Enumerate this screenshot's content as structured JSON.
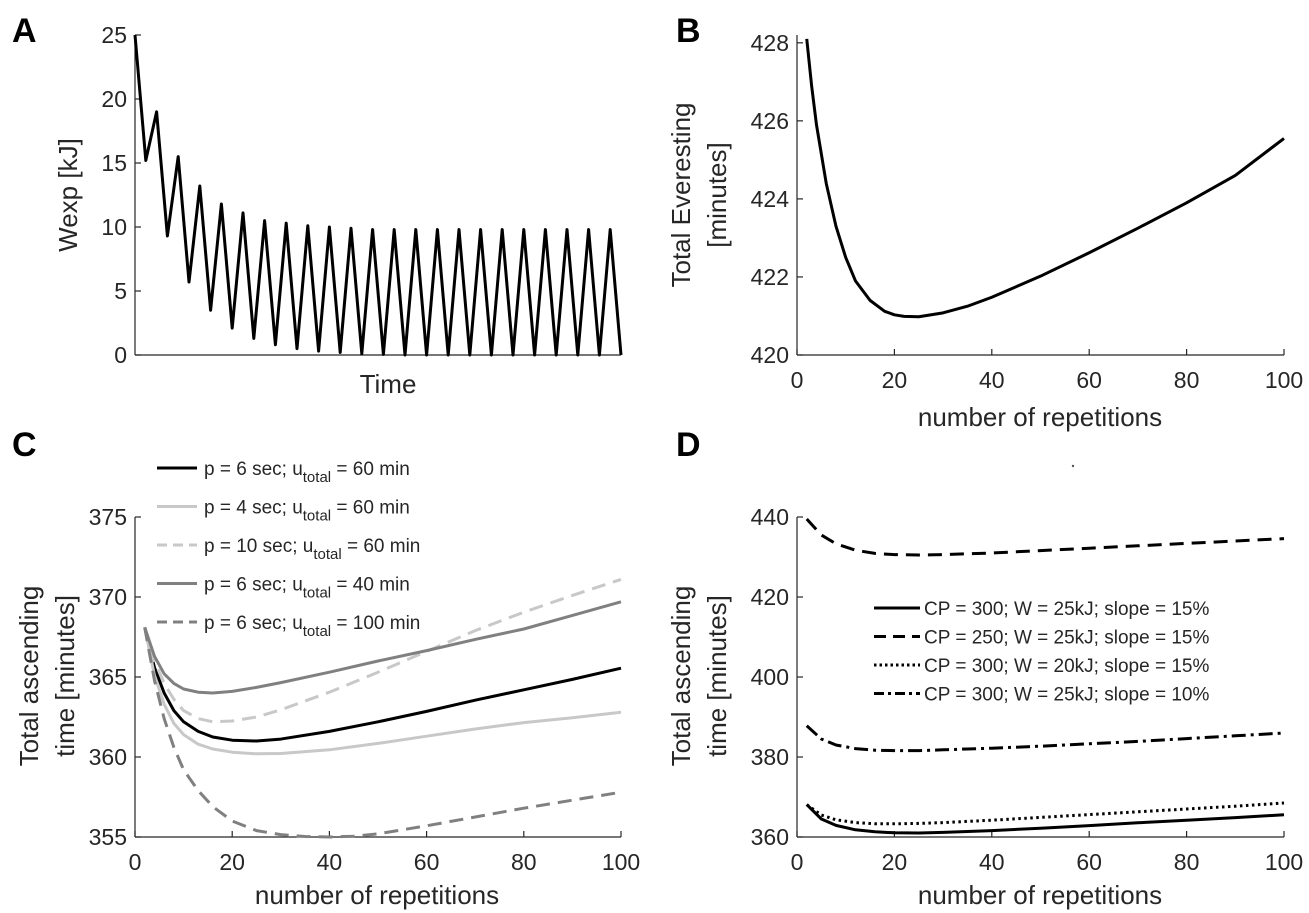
{
  "chart_data": [
    {
      "panel": "A",
      "type": "line",
      "xlabel": "Time",
      "ylabel": "Wexp [kJ]",
      "xticks": [],
      "ylim": [
        0,
        25
      ],
      "yticks": [
        0,
        5,
        10,
        15,
        20,
        25
      ],
      "grid": false,
      "legend": null,
      "series": [
        {
          "color": "#000000",
          "dash": "solid",
          "points": [
            [
              0,
              25
            ],
            [
              1,
              15.2
            ],
            [
              2,
              19.0
            ],
            [
              3,
              9.3
            ],
            [
              4,
              15.5
            ],
            [
              5,
              5.7
            ],
            [
              6,
              13.2
            ],
            [
              7,
              3.5
            ],
            [
              8,
              11.8
            ],
            [
              9,
              2.1
            ],
            [
              10,
              11.1
            ],
            [
              11,
              1.3
            ],
            [
              12,
              10.5
            ],
            [
              13,
              0.8
            ],
            [
              14,
              10.3
            ],
            [
              15,
              0.5
            ],
            [
              16,
              10.1
            ],
            [
              17,
              0.3
            ],
            [
              18,
              10.0
            ],
            [
              19,
              0.2
            ],
            [
              20,
              9.9
            ],
            [
              21,
              0.1
            ],
            [
              22,
              9.8
            ],
            [
              23,
              0.05
            ],
            [
              24,
              9.8
            ],
            [
              25,
              0
            ],
            [
              26,
              9.8
            ],
            [
              27,
              0
            ],
            [
              28,
              9.8
            ],
            [
              29,
              0
            ],
            [
              30,
              9.8
            ],
            [
              31,
              0
            ],
            [
              32,
              9.8
            ],
            [
              33,
              0
            ],
            [
              34,
              9.8
            ],
            [
              35,
              0
            ],
            [
              36,
              9.8
            ],
            [
              37,
              0
            ],
            [
              38,
              9.8
            ],
            [
              39,
              0
            ],
            [
              40,
              9.8
            ],
            [
              41,
              0
            ],
            [
              42,
              9.8
            ],
            [
              43,
              0
            ],
            [
              44,
              9.8
            ],
            [
              45,
              0
            ]
          ]
        }
      ]
    },
    {
      "panel": "B",
      "type": "line",
      "xlabel": "number of repetitions",
      "ylabel": [
        "Total Everesting",
        "[minutes]"
      ],
      "xlim": [
        0,
        100
      ],
      "xticks": [
        0,
        20,
        40,
        60,
        80,
        100
      ],
      "ylim": [
        420,
        428.2
      ],
      "yticks": [
        420,
        422,
        424,
        426,
        428
      ],
      "grid": false,
      "legend": null,
      "series": [
        {
          "color": "#000000",
          "dash": "solid",
          "points": [
            [
              2,
              428.1
            ],
            [
              3,
              426.9
            ],
            [
              4,
              425.9
            ],
            [
              6,
              424.4
            ],
            [
              8,
              423.3
            ],
            [
              10,
              422.5
            ],
            [
              12,
              421.9
            ],
            [
              15,
              421.4
            ],
            [
              18,
              421.12
            ],
            [
              20,
              421.03
            ],
            [
              22,
              420.99
            ],
            [
              25,
              420.98
            ],
            [
              30,
              421.08
            ],
            [
              35,
              421.25
            ],
            [
              40,
              421.48
            ],
            [
              50,
              422.02
            ],
            [
              60,
              422.62
            ],
            [
              70,
              423.25
            ],
            [
              80,
              423.9
            ],
            [
              90,
              424.6
            ],
            [
              100,
              425.55
            ]
          ]
        }
      ]
    },
    {
      "panel": "C",
      "type": "line",
      "xlabel": "number of repetitions",
      "ylabel": [
        "Total ascending",
        "time [minutes]"
      ],
      "xlim": [
        0,
        100
      ],
      "xticks": [
        0,
        20,
        40,
        60,
        80,
        100
      ],
      "ylim": [
        355,
        375
      ],
      "yticks": [
        355,
        360,
        365,
        370,
        375
      ],
      "grid": false,
      "legend": "top-left",
      "series": [
        {
          "name_parts": [
            "p = 6 sec; u",
            "total",
            " = 60 min"
          ],
          "color": "#000000",
          "dash": "solid",
          "points": [
            [
              2,
              368.1
            ],
            [
              4,
              365.6
            ],
            [
              6,
              364.0
            ],
            [
              8,
              362.9
            ],
            [
              10,
              362.2
            ],
            [
              13,
              361.6
            ],
            [
              16,
              361.25
            ],
            [
              20,
              361.05
            ],
            [
              25,
              361.0
            ],
            [
              30,
              361.12
            ],
            [
              40,
              361.6
            ],
            [
              50,
              362.2
            ],
            [
              60,
              362.85
            ],
            [
              70,
              363.55
            ],
            [
              80,
              364.2
            ],
            [
              90,
              364.85
            ],
            [
              100,
              365.55
            ]
          ]
        },
        {
          "name_parts": [
            "p = 4 sec;  u",
            "total",
            " = 60 min"
          ],
          "color": "#c8c8c8",
          "dash": "solid",
          "points": [
            [
              2,
              368.1
            ],
            [
              4,
              365.1
            ],
            [
              6,
              363.3
            ],
            [
              8,
              362.1
            ],
            [
              10,
              361.4
            ],
            [
              13,
              360.8
            ],
            [
              16,
              360.5
            ],
            [
              20,
              360.3
            ],
            [
              25,
              360.2
            ],
            [
              30,
              360.22
            ],
            [
              40,
              360.45
            ],
            [
              50,
              360.85
            ],
            [
              60,
              361.3
            ],
            [
              70,
              361.75
            ],
            [
              80,
              362.15
            ],
            [
              90,
              362.45
            ],
            [
              100,
              362.8
            ]
          ]
        },
        {
          "name_parts": [
            "p = 10 sec;  u",
            "total",
            " = 60 min"
          ],
          "color": "#c8c8c8",
          "dash": "dashed",
          "points": [
            [
              2,
              368.1
            ],
            [
              4,
              366.0
            ],
            [
              6,
              364.6
            ],
            [
              8,
              363.6
            ],
            [
              10,
              362.9
            ],
            [
              13,
              362.4
            ],
            [
              16,
              362.2
            ],
            [
              20,
              362.25
            ],
            [
              25,
              362.5
            ],
            [
              30,
              362.95
            ],
            [
              40,
              364.05
            ],
            [
              50,
              365.3
            ],
            [
              60,
              366.6
            ],
            [
              70,
              367.9
            ],
            [
              80,
              369.05
            ],
            [
              90,
              370.1
            ],
            [
              100,
              371.1
            ]
          ]
        },
        {
          "name_parts": [
            "p = 6 sec;  u",
            "total",
            " = 40 min"
          ],
          "color": "#808080",
          "dash": "solid",
          "points": [
            [
              2,
              368.1
            ],
            [
              4,
              366.3
            ],
            [
              6,
              365.2
            ],
            [
              8,
              364.6
            ],
            [
              10,
              364.25
            ],
            [
              13,
              364.05
            ],
            [
              16,
              364.0
            ],
            [
              20,
              364.1
            ],
            [
              25,
              364.35
            ],
            [
              30,
              364.65
            ],
            [
              40,
              365.3
            ],
            [
              50,
              366.0
            ],
            [
              60,
              366.65
            ],
            [
              70,
              367.35
            ],
            [
              80,
              368.0
            ],
            [
              90,
              368.85
            ],
            [
              100,
              369.7
            ]
          ]
        },
        {
          "name_parts": [
            "p = 6 sec;  u",
            "total",
            " = 100 min"
          ],
          "color": "#808080",
          "dash": "dashed",
          "points": [
            [
              2,
              368.1
            ],
            [
              4,
              364.8
            ],
            [
              6,
              362.4
            ],
            [
              8,
              360.6
            ],
            [
              10,
              359.2
            ],
            [
              13,
              357.9
            ],
            [
              16,
              356.9
            ],
            [
              20,
              356.0
            ],
            [
              25,
              355.4
            ],
            [
              30,
              355.15
            ],
            [
              35,
              355.03
            ],
            [
              40,
              355.0
            ],
            [
              45,
              355.05
            ],
            [
              50,
              355.2
            ],
            [
              60,
              355.7
            ],
            [
              70,
              356.25
            ],
            [
              80,
              356.8
            ],
            [
              90,
              357.3
            ],
            [
              100,
              357.8
            ]
          ]
        }
      ]
    },
    {
      "panel": "D",
      "type": "line",
      "xlabel": "number of repetitions",
      "ylabel": [
        "Total ascending",
        "time [minutes]"
      ],
      "xlim": [
        0,
        100
      ],
      "xticks": [
        0,
        20,
        40,
        60,
        80,
        100
      ],
      "ylim": [
        360,
        440
      ],
      "yticks": [
        360,
        380,
        400,
        420,
        440
      ],
      "grid": false,
      "legend": "center-right",
      "series": [
        {
          "name": "CP = 300; W = 25kJ; slope = 15%",
          "color": "#000000",
          "dash": "solid",
          "points": [
            [
              2,
              368.1
            ],
            [
              5,
              364.5
            ],
            [
              8,
              362.9
            ],
            [
              12,
              361.8
            ],
            [
              16,
              361.3
            ],
            [
              20,
              361.05
            ],
            [
              25,
              361.0
            ],
            [
              30,
              361.15
            ],
            [
              40,
              361.6
            ],
            [
              50,
              362.2
            ],
            [
              60,
              362.85
            ],
            [
              70,
              363.55
            ],
            [
              80,
              364.2
            ],
            [
              90,
              364.85
            ],
            [
              100,
              365.55
            ]
          ]
        },
        {
          "name": "CP = 250; W = 25kJ; slope = 15%",
          "color": "#000000",
          "dash": "dashed",
          "points": [
            [
              2,
              439.5
            ],
            [
              5,
              435.5
            ],
            [
              8,
              433.3
            ],
            [
              12,
              431.7
            ],
            [
              16,
              430.9
            ],
            [
              20,
              430.6
            ],
            [
              25,
              430.5
            ],
            [
              30,
              430.6
            ],
            [
              40,
              431.0
            ],
            [
              50,
              431.6
            ],
            [
              60,
              432.2
            ],
            [
              70,
              432.8
            ],
            [
              80,
              433.4
            ],
            [
              90,
              434.0
            ],
            [
              100,
              434.6
            ]
          ]
        },
        {
          "name": "CP = 300; W = 20kJ; slope = 15%",
          "color": "#000000",
          "dash": "dotted",
          "points": [
            [
              2,
              368.1
            ],
            [
              5,
              365.5
            ],
            [
              8,
              364.3
            ],
            [
              12,
              363.6
            ],
            [
              16,
              363.3
            ],
            [
              20,
              363.3
            ],
            [
              25,
              363.4
            ],
            [
              30,
              363.6
            ],
            [
              40,
              364.2
            ],
            [
              50,
              364.9
            ],
            [
              60,
              365.6
            ],
            [
              70,
              366.3
            ],
            [
              80,
              367.0
            ],
            [
              90,
              367.7
            ],
            [
              100,
              368.5
            ]
          ]
        },
        {
          "name": "CP = 300; W = 25kJ; slope = 10%",
          "color": "#000000",
          "dash": "dashdot",
          "points": [
            [
              2,
              387.8
            ],
            [
              5,
              384.5
            ],
            [
              8,
              383.0
            ],
            [
              12,
              382.1
            ],
            [
              16,
              381.7
            ],
            [
              20,
              381.6
            ],
            [
              25,
              381.6
            ],
            [
              30,
              381.8
            ],
            [
              40,
              382.2
            ],
            [
              50,
              382.7
            ],
            [
              60,
              383.3
            ],
            [
              70,
              383.9
            ],
            [
              80,
              384.6
            ],
            [
              90,
              385.3
            ],
            [
              100,
              386.0
            ]
          ]
        }
      ]
    }
  ]
}
